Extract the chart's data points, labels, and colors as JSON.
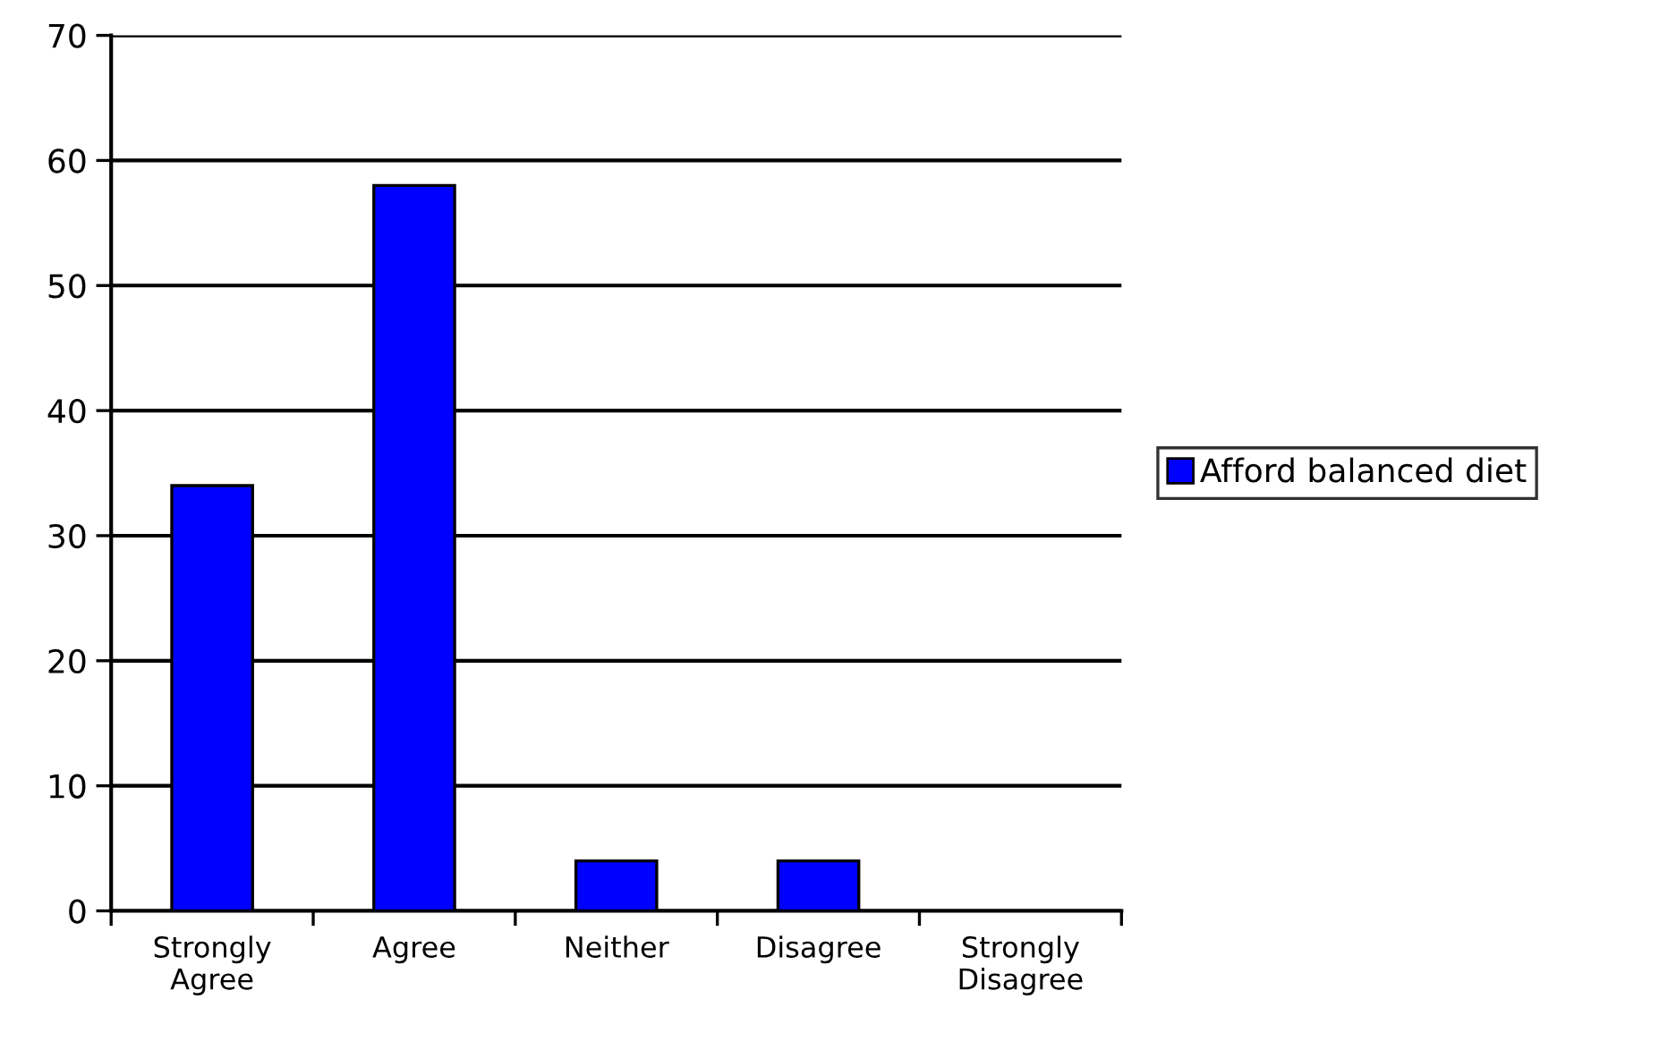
{
  "chart_data": {
    "type": "bar",
    "categories": [
      "Strongly\nAgree",
      "Agree",
      "Neither",
      "Disagree",
      "Strongly\nDisagree"
    ],
    "series": [
      {
        "name": "Afford balanced diet",
        "color": "#0000ff",
        "values": [
          34,
          58,
          4,
          4,
          0
        ]
      }
    ],
    "ylim": [
      0,
      70
    ],
    "yticks": [
      0,
      10,
      20,
      30,
      40,
      50,
      60,
      70
    ],
    "grid": "y",
    "legend": "right"
  }
}
